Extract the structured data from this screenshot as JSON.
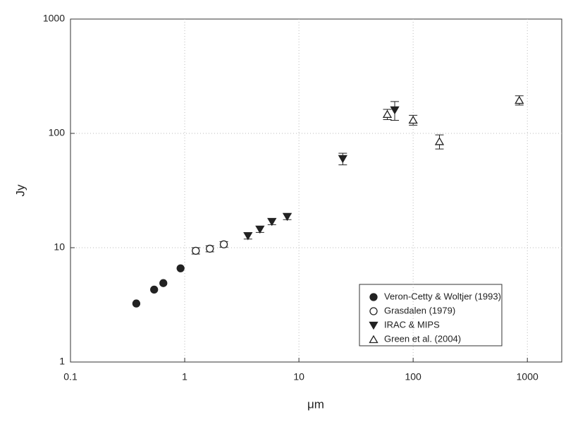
{
  "chart_data": {
    "type": "scatter",
    "x_label": "μm",
    "y_label": "Jy",
    "log_x": true,
    "log_y": true,
    "grid": true,
    "legend_position": "lower right",
    "xlim": [
      0.1,
      2000
    ],
    "ylim": [
      1,
      1000
    ],
    "xticks": [
      0.1,
      1,
      10,
      100,
      1000
    ],
    "yticks": [
      1,
      10,
      100,
      1000
    ],
    "series": [
      {
        "name": "Veron-Cetty & Woltjer (1993)",
        "marker": "circle",
        "filled": true,
        "color": "#222222",
        "x": [
          0.377,
          0.54,
          0.65,
          0.92
        ],
        "values": [
          3.25,
          4.3,
          4.9,
          6.6
        ]
      },
      {
        "name": "Grasdalen (1979)",
        "marker": "circle",
        "filled": false,
        "color": "#222222",
        "x": [
          1.25,
          1.66,
          2.2
        ],
        "values": [
          9.4,
          9.8,
          10.7
        ],
        "errors": [
          0.6,
          0.6,
          0.6
        ]
      },
      {
        "name": "IRAC & MIPS",
        "marker": "triangle-down",
        "filled": true,
        "color": "#222222",
        "x": [
          3.58,
          4.56,
          5.8,
          7.9,
          24.2,
          69
        ],
        "values": [
          12.7,
          14.5,
          16.9,
          18.7,
          60,
          160
        ],
        "errors": [
          0.8,
          0.9,
          1.0,
          1.1,
          7,
          30
        ]
      },
      {
        "name": "Green et al. (2004)",
        "marker": "triangle-up",
        "filled": false,
        "color": "#222222",
        "x": [
          59.4,
          100,
          170,
          850
        ],
        "values": [
          147,
          131,
          85,
          195
        ],
        "errors": [
          15,
          13,
          12,
          18
        ]
      }
    ]
  }
}
